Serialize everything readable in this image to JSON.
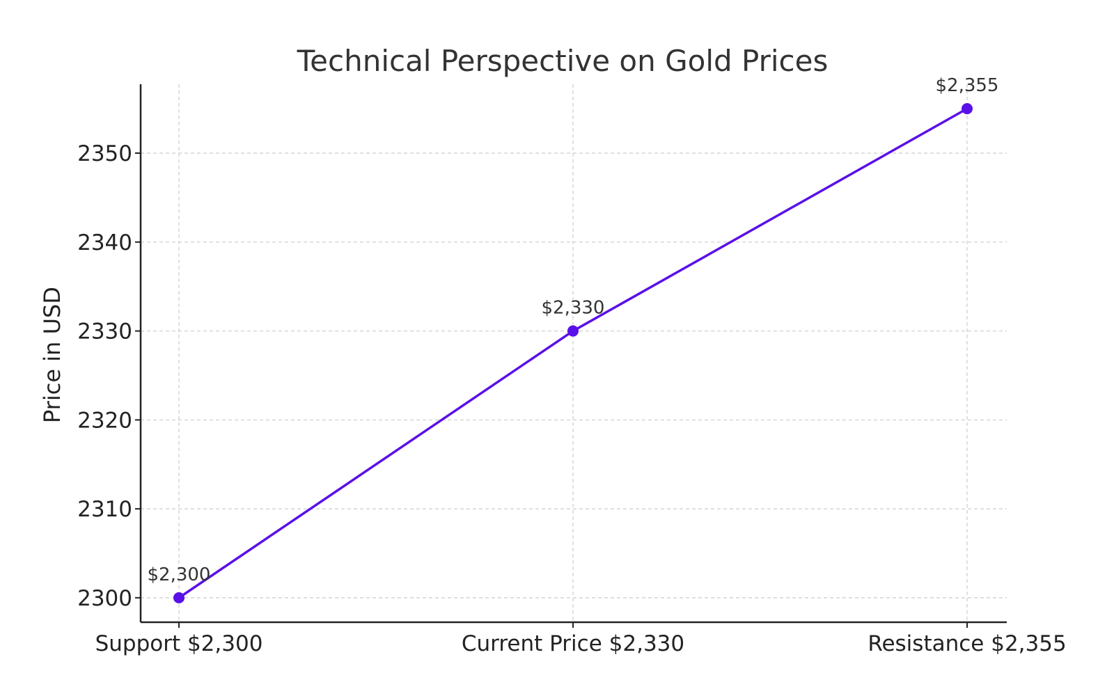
{
  "chart_data": {
    "type": "line",
    "title": "Technical Perspective on Gold Prices",
    "xlabel": "",
    "ylabel": "Price in USD",
    "categories": [
      "Support $2,300",
      "Current Price $2,330",
      "Resistance $2,355"
    ],
    "series": [
      {
        "values": [
          2300,
          2330,
          2355
        ],
        "data_labels": [
          "$2,300",
          "$2,330",
          "$2,355"
        ],
        "color": "#5a10e8"
      }
    ],
    "ylim": [
      2297.25,
      2357.75
    ],
    "yticks": [
      2300,
      2310,
      2320,
      2330,
      2340,
      2350
    ],
    "ytick_labels": [
      "2300",
      "2310",
      "2320",
      "2330",
      "2340",
      "2350"
    ],
    "grid": true,
    "legend": "none"
  }
}
